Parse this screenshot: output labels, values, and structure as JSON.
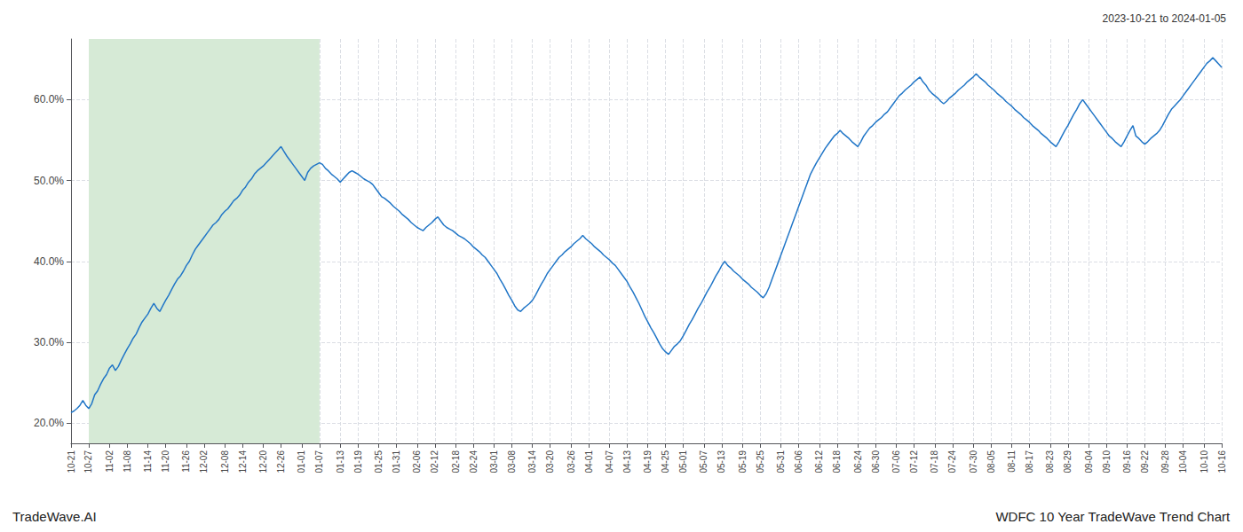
{
  "chart_data": {
    "type": "line",
    "title": "2023-10-21 to 2024-01-05",
    "annotations": [
      "TradeWave.AI",
      "WDFC 10 Year TradeWave Trend Chart"
    ],
    "color": "#2176c7",
    "grid": true,
    "highlight": {
      "from": "10-27",
      "to": "01-07",
      "color": "#d6ead6"
    },
    "ylim": [
      0.175,
      0.675
    ],
    "yticks": [
      {
        "value": 0.2,
        "label": "20.0%"
      },
      {
        "value": 0.3,
        "label": "30.0%"
      },
      {
        "value": 0.4,
        "label": "40.0%"
      },
      {
        "value": 0.5,
        "label": "50.0%"
      },
      {
        "value": 0.6,
        "label": "60.0%"
      }
    ],
    "categories": [
      "10-21",
      null,
      null,
      null,
      null,
      null,
      "10-27",
      null,
      null,
      null,
      null,
      null,
      null,
      "11-02",
      null,
      null,
      null,
      null,
      null,
      "11-08",
      null,
      null,
      null,
      null,
      null,
      null,
      "11-14",
      null,
      null,
      null,
      null,
      null,
      "11-20",
      null,
      null,
      null,
      null,
      null,
      null,
      "11-26",
      null,
      null,
      null,
      null,
      null,
      "12-02",
      null,
      null,
      null,
      null,
      null,
      null,
      "12-08",
      null,
      null,
      null,
      null,
      null,
      "12-14",
      null,
      null,
      null,
      null,
      null,
      null,
      "12-20",
      null,
      null,
      null,
      null,
      null,
      "12-26",
      null,
      null,
      null,
      null,
      null,
      null,
      "01-01",
      null,
      null,
      null,
      null,
      null,
      "01-07",
      null,
      null,
      null,
      null,
      null,
      null,
      "01-13",
      null,
      null,
      null,
      null,
      null,
      "01-19",
      null,
      null,
      null,
      null,
      null,
      null,
      "01-25",
      null,
      null,
      null,
      null,
      null,
      "01-31",
      null,
      null,
      null,
      null,
      null,
      null,
      "02-06",
      null,
      null,
      null,
      null,
      null,
      "02-12",
      null,
      null,
      null,
      null,
      null,
      null,
      "02-18",
      null,
      null,
      null,
      null,
      null,
      "02-24",
      null,
      null,
      null,
      null,
      null,
      null,
      "03-01",
      null,
      null,
      null,
      null,
      null,
      "03-08",
      null,
      null,
      null,
      null,
      null,
      null,
      "03-14",
      null,
      null,
      null,
      null,
      null,
      "03-20",
      null,
      null,
      null,
      null,
      null,
      null,
      "03-26",
      null,
      null,
      null,
      null,
      null,
      "04-01",
      null,
      null,
      null,
      null,
      null,
      null,
      "04-07",
      null,
      null,
      null,
      null,
      null,
      "04-13",
      null,
      null,
      null,
      null,
      null,
      null,
      "04-19",
      null,
      null,
      null,
      null,
      null,
      "04-25",
      null,
      null,
      null,
      null,
      null,
      "05-01",
      null,
      null,
      null,
      null,
      null,
      null,
      "05-07",
      null,
      null,
      null,
      null,
      null,
      "05-13",
      null,
      null,
      null,
      null,
      null,
      null,
      "05-19",
      null,
      null,
      null,
      null,
      null,
      "05-25",
      null,
      null,
      null,
      null,
      null,
      null,
      "05-31",
      null,
      null,
      null,
      null,
      null,
      "06-06",
      null,
      null,
      null,
      null,
      null,
      null,
      "06-12",
      null,
      null,
      null,
      null,
      null,
      "06-18",
      null,
      null,
      null,
      null,
      null,
      null,
      "06-24",
      null,
      null,
      null,
      null,
      null,
      "06-30",
      null,
      null,
      null,
      null,
      null,
      null,
      "07-06",
      null,
      null,
      null,
      null,
      null,
      "07-12",
      null,
      null,
      null,
      null,
      null,
      null,
      "07-18",
      null,
      null,
      null,
      null,
      null,
      "07-24",
      null,
      null,
      null,
      null,
      null,
      null,
      "07-30",
      null,
      null,
      null,
      null,
      null,
      "08-05",
      null,
      null,
      null,
      null,
      null,
      null,
      "08-11",
      null,
      null,
      null,
      null,
      null,
      "08-17",
      null,
      null,
      null,
      null,
      null,
      null,
      "08-23",
      null,
      null,
      null,
      null,
      null,
      "08-29",
      null,
      null,
      null,
      null,
      null,
      null,
      "09-04",
      null,
      null,
      null,
      null,
      null,
      "09-10",
      null,
      null,
      null,
      null,
      null,
      null,
      "09-16",
      null,
      null,
      null,
      null,
      null,
      "09-22",
      null,
      null,
      null,
      null,
      null,
      null,
      "09-28",
      null,
      null,
      null,
      null,
      null,
      "10-04",
      null,
      null,
      null,
      null,
      null,
      null,
      "10-10",
      null,
      null,
      null,
      null,
      null,
      "10-16"
    ],
    "values": [
      0.213,
      0.215,
      0.218,
      0.222,
      0.228,
      0.222,
      0.218,
      0.224,
      0.235,
      0.24,
      0.248,
      0.255,
      0.26,
      0.268,
      0.272,
      0.265,
      0.27,
      0.278,
      0.285,
      0.292,
      0.298,
      0.305,
      0.31,
      0.318,
      0.325,
      0.33,
      0.335,
      0.342,
      0.348,
      0.342,
      0.338,
      0.345,
      0.352,
      0.358,
      0.365,
      0.372,
      0.378,
      0.382,
      0.388,
      0.395,
      0.4,
      0.408,
      0.415,
      0.42,
      0.425,
      0.43,
      0.435,
      0.44,
      0.445,
      0.448,
      0.452,
      0.458,
      0.462,
      0.465,
      0.47,
      0.475,
      0.478,
      0.482,
      0.488,
      0.492,
      0.498,
      0.502,
      0.508,
      0.512,
      0.515,
      0.518,
      0.522,
      0.526,
      0.53,
      0.534,
      0.538,
      0.542,
      0.536,
      0.53,
      0.525,
      0.52,
      0.515,
      0.51,
      0.505,
      0.5,
      0.51,
      0.515,
      0.518,
      0.52,
      0.522,
      0.52,
      0.515,
      0.512,
      0.508,
      0.505,
      0.502,
      0.498,
      0.502,
      0.506,
      0.51,
      0.512,
      0.51,
      0.508,
      0.505,
      0.502,
      0.5,
      0.498,
      0.495,
      0.49,
      0.485,
      0.48,
      0.478,
      0.475,
      0.472,
      0.468,
      0.465,
      0.462,
      0.458,
      0.455,
      0.452,
      0.448,
      0.445,
      0.442,
      0.44,
      0.438,
      0.442,
      0.445,
      0.448,
      0.452,
      0.455,
      0.45,
      0.445,
      0.442,
      0.44,
      0.438,
      0.435,
      0.432,
      0.43,
      0.428,
      0.425,
      0.422,
      0.418,
      0.415,
      0.412,
      0.408,
      0.405,
      0.4,
      0.395,
      0.39,
      0.385,
      0.378,
      0.372,
      0.365,
      0.358,
      0.352,
      0.345,
      0.34,
      0.338,
      0.342,
      0.345,
      0.348,
      0.352,
      0.358,
      0.365,
      0.372,
      0.378,
      0.385,
      0.39,
      0.395,
      0.4,
      0.405,
      0.408,
      0.412,
      0.415,
      0.418,
      0.422,
      0.425,
      0.428,
      0.432,
      0.428,
      0.425,
      0.422,
      0.418,
      0.415,
      0.412,
      0.408,
      0.405,
      0.402,
      0.398,
      0.395,
      0.39,
      0.385,
      0.38,
      0.375,
      0.368,
      0.362,
      0.355,
      0.348,
      0.34,
      0.332,
      0.325,
      0.318,
      0.312,
      0.305,
      0.298,
      0.292,
      0.288,
      0.285,
      0.29,
      0.295,
      0.298,
      0.302,
      0.308,
      0.315,
      0.322,
      0.328,
      0.335,
      0.342,
      0.348,
      0.355,
      0.362,
      0.368,
      0.375,
      0.382,
      0.388,
      0.395,
      0.4,
      0.395,
      0.392,
      0.388,
      0.385,
      0.382,
      0.378,
      0.375,
      0.372,
      0.368,
      0.365,
      0.362,
      0.358,
      0.355,
      0.36,
      0.368,
      0.378,
      0.388,
      0.398,
      0.408,
      0.418,
      0.428,
      0.438,
      0.448,
      0.458,
      0.468,
      0.478,
      0.488,
      0.498,
      0.508,
      0.515,
      0.522,
      0.528,
      0.534,
      0.54,
      0.545,
      0.55,
      0.555,
      0.558,
      0.562,
      0.558,
      0.555,
      0.552,
      0.548,
      0.545,
      0.542,
      0.548,
      0.555,
      0.56,
      0.565,
      0.568,
      0.572,
      0.575,
      0.578,
      0.582,
      0.585,
      0.59,
      0.595,
      0.6,
      0.605,
      0.608,
      0.612,
      0.615,
      0.618,
      0.622,
      0.625,
      0.628,
      0.622,
      0.618,
      0.612,
      0.608,
      0.605,
      0.602,
      0.598,
      0.595,
      0.598,
      0.602,
      0.605,
      0.608,
      0.612,
      0.615,
      0.618,
      0.622,
      0.625,
      0.628,
      0.632,
      0.628,
      0.625,
      0.622,
      0.618,
      0.615,
      0.612,
      0.608,
      0.605,
      0.602,
      0.598,
      0.595,
      0.592,
      0.588,
      0.585,
      0.582,
      0.578,
      0.575,
      0.572,
      0.568,
      0.565,
      0.562,
      0.558,
      0.555,
      0.552,
      0.548,
      0.545,
      0.542,
      0.548,
      0.555,
      0.562,
      0.568,
      0.575,
      0.582,
      0.588,
      0.595,
      0.6,
      0.595,
      0.59,
      0.585,
      0.58,
      0.575,
      0.57,
      0.565,
      0.56,
      0.555,
      0.552,
      0.548,
      0.545,
      0.542,
      0.548,
      0.555,
      0.562,
      0.568,
      0.555,
      0.552,
      0.548,
      0.545,
      0.548,
      0.552,
      0.555,
      0.558,
      0.562,
      0.568,
      0.575,
      0.582,
      0.588,
      0.592,
      0.596,
      0.6,
      0.605,
      0.61,
      0.615,
      0.62,
      0.625,
      0.63,
      0.635,
      0.64,
      0.645,
      0.648,
      0.652,
      0.648,
      0.644,
      0.64
    ]
  }
}
